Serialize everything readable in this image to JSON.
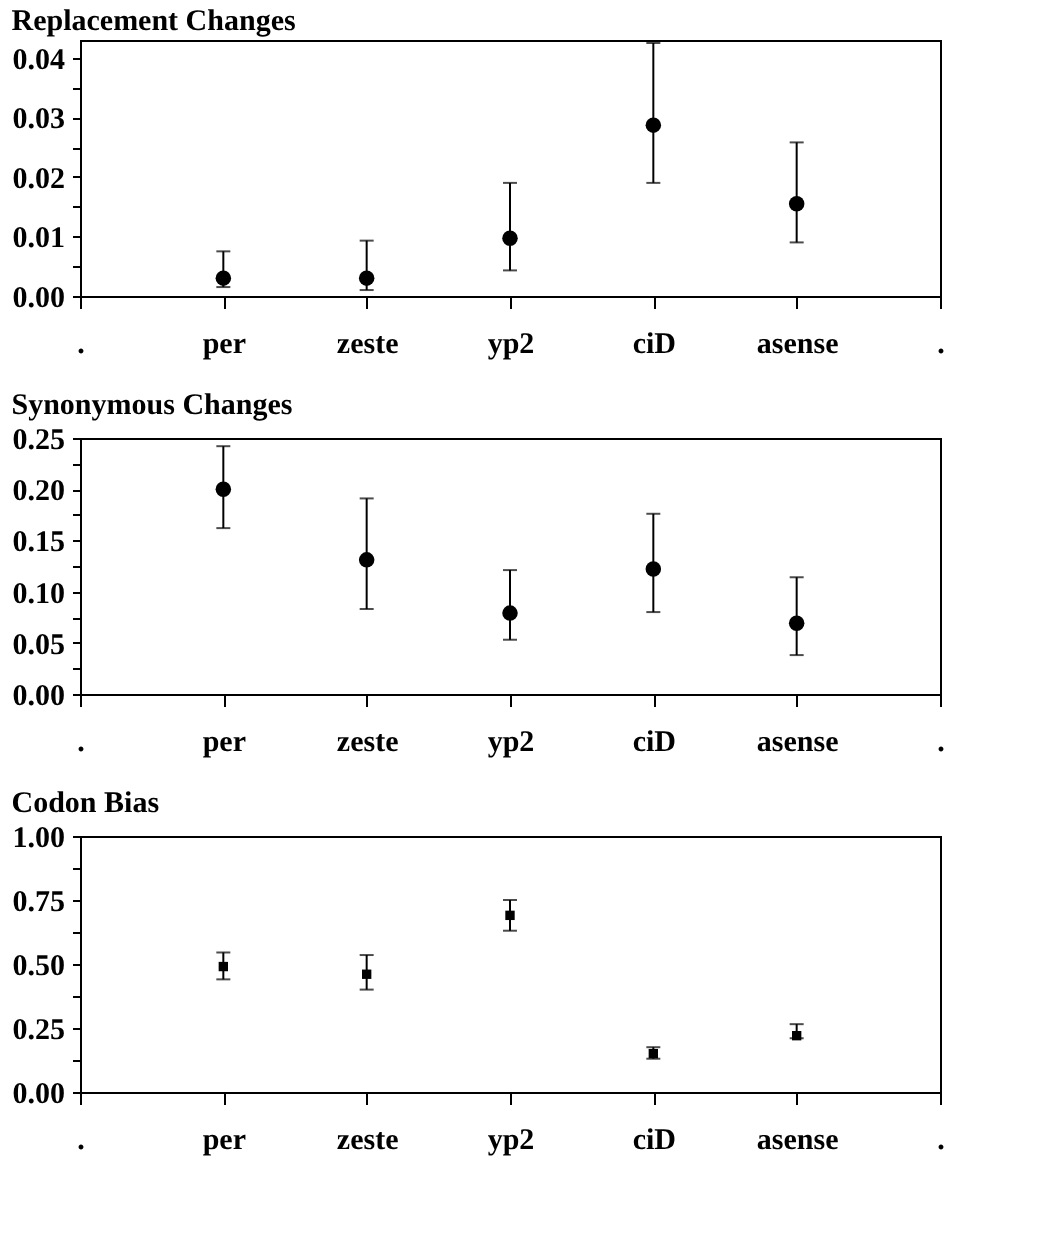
{
  "chart_data": [
    {
      "type": "scatter",
      "title": "Replacement Changes",
      "categories": [
        ".",
        "per",
        "zeste",
        "yp2",
        "ciD",
        "asense",
        "."
      ],
      "marker": "circle",
      "grid": false,
      "series": [
        {
          "color": "#000000",
          "values": [
            null,
            0.003,
            0.003,
            0.0097,
            0.0287,
            0.0155,
            null
          ],
          "errors": [
            null,
            [
              0.0015,
              0.0075
            ],
            [
              0.001,
              0.0093
            ],
            [
              0.0043,
              0.019
            ],
            [
              0.019,
              0.0425
            ],
            [
              0.009,
              0.0258
            ],
            null
          ]
        }
      ],
      "ylim": [
        0,
        0.043
      ],
      "yticks": [
        {
          "value": 0,
          "label": "0.00"
        },
        {
          "value": 0.005,
          "label": null
        },
        {
          "value": 0.01,
          "label": "0.01"
        },
        {
          "value": 0.015,
          "label": null
        },
        {
          "value": 0.02,
          "label": "0.02"
        },
        {
          "value": 0.025,
          "label": null
        },
        {
          "value": 0.03,
          "label": "0.03"
        },
        {
          "value": 0.035,
          "label": null
        },
        {
          "value": 0.04,
          "label": "0.04"
        }
      ]
    },
    {
      "type": "scatter",
      "title": "Synonymous Changes",
      "categories": [
        ".",
        "per",
        "zeste",
        "yp2",
        "ciD",
        "asense",
        "."
      ],
      "marker": "circle",
      "grid": false,
      "series": [
        {
          "color": "#000000",
          "values": [
            null,
            0.2,
            0.131,
            0.079,
            0.122,
            0.069,
            null
          ],
          "errors": [
            null,
            [
              0.162,
              0.242
            ],
            [
              0.083,
              0.191
            ],
            [
              0.053,
              0.121
            ],
            [
              0.08,
              0.176
            ],
            [
              0.038,
              0.114
            ],
            null
          ]
        }
      ],
      "ylim": [
        0,
        0.25
      ],
      "yticks": [
        {
          "value": 0,
          "label": "0.00"
        },
        {
          "value": 0.025,
          "label": null
        },
        {
          "value": 0.05,
          "label": "0.05"
        },
        {
          "value": 0.075,
          "label": null
        },
        {
          "value": 0.1,
          "label": "0.10"
        },
        {
          "value": 0.125,
          "label": null
        },
        {
          "value": 0.15,
          "label": "0.15"
        },
        {
          "value": 0.175,
          "label": null
        },
        {
          "value": 0.2,
          "label": "0.20"
        },
        {
          "value": 0.225,
          "label": null
        },
        {
          "value": 0.25,
          "label": "0.25"
        }
      ]
    },
    {
      "type": "scatter",
      "title": "Codon Bias",
      "categories": [
        ".",
        "per",
        "zeste",
        "yp2",
        "ciD",
        "asense",
        "."
      ],
      "marker": "square",
      "grid": false,
      "series": [
        {
          "color": "#000000",
          "values": [
            null,
            0.49,
            0.46,
            0.69,
            0.15,
            0.22,
            null
          ],
          "errors": [
            null,
            [
              0.44,
              0.545
            ],
            [
              0.4,
              0.535
            ],
            [
              0.63,
              0.75
            ],
            [
              0.13,
              0.175
            ],
            [
              0.21,
              0.265
            ],
            null
          ]
        }
      ],
      "ylim": [
        0,
        1.0
      ],
      "yticks": [
        {
          "value": 0,
          "label": "0.00"
        },
        {
          "value": 0.125,
          "label": null
        },
        {
          "value": 0.25,
          "label": "0.25"
        },
        {
          "value": 0.375,
          "label": null
        },
        {
          "value": 0.5,
          "label": "0.50"
        },
        {
          "value": 0.625,
          "label": null
        },
        {
          "value": 0.75,
          "label": "0.75"
        },
        {
          "value": 0.875,
          "label": null
        },
        {
          "value": 1.0,
          "label": "1.00"
        }
      ]
    }
  ]
}
